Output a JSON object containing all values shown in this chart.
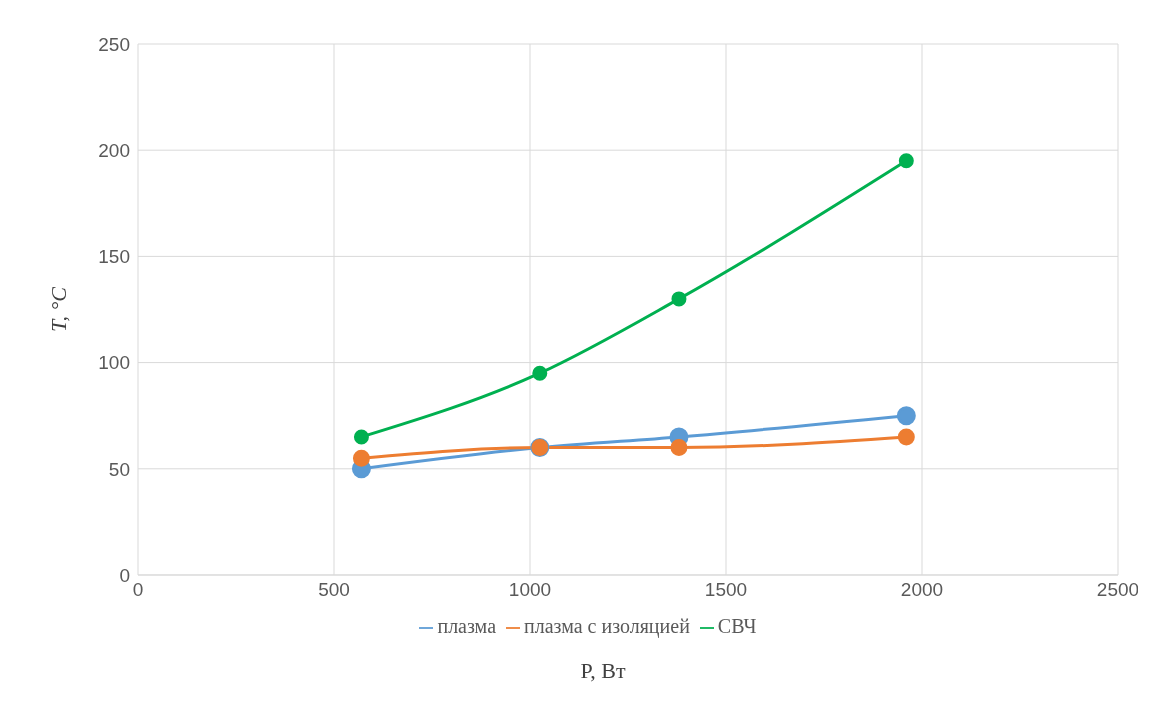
{
  "chart_data": {
    "type": "line",
    "xlabel": "P, Вт",
    "ylabel": "T, °C",
    "x": [
      570,
      1025,
      1380,
      1960
    ],
    "series": [
      {
        "name": "плазма",
        "color": "#5b9bd5",
        "values": [
          50,
          60,
          65,
          75
        ]
      },
      {
        "name": "плазма с изоляцией",
        "color": "#ed7d31",
        "values": [
          55,
          60,
          60,
          65
        ]
      },
      {
        "name": "СВЧ",
        "color": "#00b050",
        "values": [
          65,
          95,
          130,
          195
        ]
      }
    ],
    "xlim": [
      0,
      2500
    ],
    "xticks": [
      0,
      500,
      1000,
      1500,
      2000,
      2500
    ],
    "ylim": [
      0,
      250
    ],
    "yticks": [
      0,
      50,
      100,
      150,
      200,
      250
    ],
    "grid": true,
    "legend": "bottom",
    "marker": "circle",
    "line_style": "solid"
  }
}
